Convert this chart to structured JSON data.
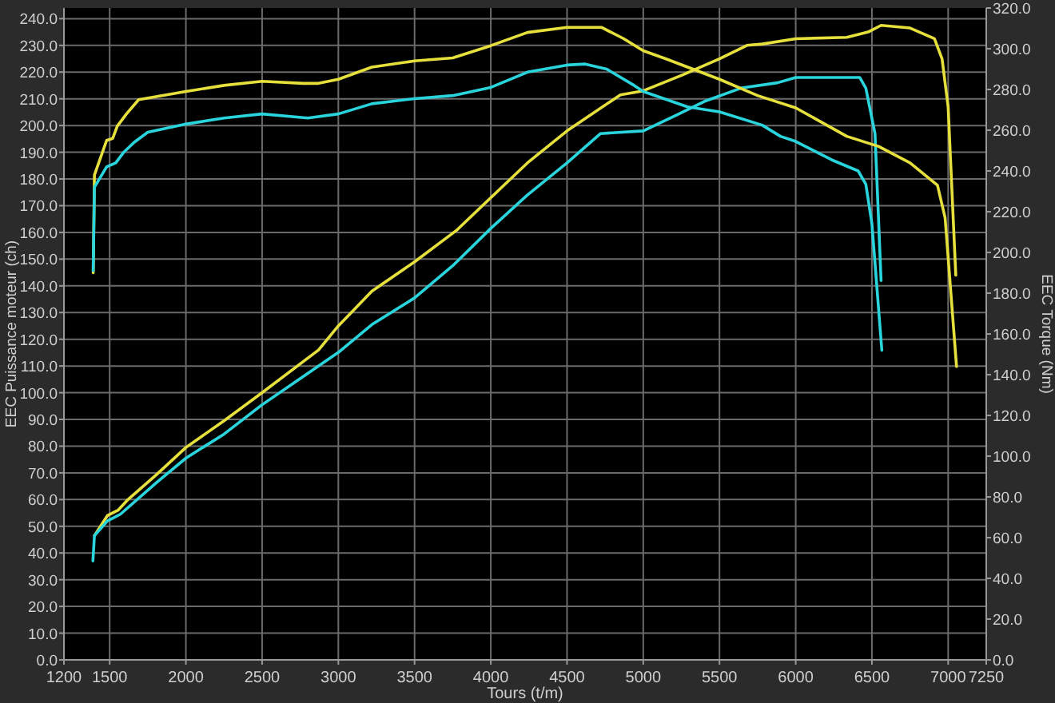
{
  "chart_data": {
    "type": "line",
    "xlabel": "Tours (t/m)",
    "ylabel": "EEC Puissance moteur (ch)",
    "y2label": "EEC Torque (Nm)",
    "grid": true,
    "marker": "none",
    "line_style": "solid",
    "xlim": [
      1200,
      7250
    ],
    "xticks": [
      1200,
      1500,
      2000,
      2500,
      3000,
      3500,
      4000,
      4500,
      5000,
      5500,
      6000,
      6500,
      7000,
      7250
    ],
    "ylim": [
      0,
      244
    ],
    "yticks": [
      {
        "value": 0,
        "label": "0.0"
      },
      {
        "value": 10,
        "label": "10.0"
      },
      {
        "value": 20,
        "label": "20.0"
      },
      {
        "value": 30,
        "label": "30.0"
      },
      {
        "value": 40,
        "label": "40.0"
      },
      {
        "value": 50,
        "label": "50.0"
      },
      {
        "value": 60,
        "label": "60.0"
      },
      {
        "value": 70,
        "label": "70.0"
      },
      {
        "value": 80,
        "label": "80.0"
      },
      {
        "value": 90,
        "label": "90.0"
      },
      {
        "value": 100,
        "label": "100.0"
      },
      {
        "value": 110,
        "label": "110.0"
      },
      {
        "value": 120,
        "label": "120.0"
      },
      {
        "value": 130,
        "label": "130.0"
      },
      {
        "value": 140,
        "label": "140.0"
      },
      {
        "value": 150,
        "label": "150.0"
      },
      {
        "value": 160,
        "label": "160.0"
      },
      {
        "value": 170,
        "label": "170.0"
      },
      {
        "value": 180,
        "label": "180.0"
      },
      {
        "value": 190,
        "label": "190.0"
      },
      {
        "value": 200,
        "label": "200.0"
      },
      {
        "value": 210,
        "label": "210.0"
      },
      {
        "value": 220,
        "label": "220.0"
      },
      {
        "value": 230,
        "label": "230.0"
      },
      {
        "value": 240,
        "label": "240.0"
      }
    ],
    "y2lim": [
      0,
      320
    ],
    "y2ticks": [
      {
        "value": 0,
        "label": "0.0"
      },
      {
        "value": 20,
        "label": "20.0"
      },
      {
        "value": 40,
        "label": "40.0"
      },
      {
        "value": 60,
        "label": "60.0"
      },
      {
        "value": 80,
        "label": "80.0"
      },
      {
        "value": 100,
        "label": "100.0"
      },
      {
        "value": 120,
        "label": "120.0"
      },
      {
        "value": 140,
        "label": "140.0"
      },
      {
        "value": 160,
        "label": "160.0"
      },
      {
        "value": 180,
        "label": "180.0"
      },
      {
        "value": 200,
        "label": "200.0"
      },
      {
        "value": 220,
        "label": "220.0"
      },
      {
        "value": 240,
        "label": "240.0"
      },
      {
        "value": 260,
        "label": "260.0"
      },
      {
        "value": 280,
        "label": "280.0"
      },
      {
        "value": 300,
        "label": "300.0"
      },
      {
        "value": 320,
        "label": "320.0"
      }
    ],
    "series": [
      {
        "color": "#e6e03c",
        "x": [
          1400,
          1485,
          1555,
          1620,
          1810,
          2000,
          2250,
          2500,
          2870,
          3000,
          3220,
          3500,
          3780,
          4000,
          4240,
          4500,
          4850,
          5000,
          5260,
          5500,
          5680,
          5780,
          6000,
          6335,
          6475,
          6560,
          6750,
          6910,
          6960,
          7000,
          7050
        ],
        "values": [
          46.5,
          54,
          56,
          60,
          69.5,
          79.5,
          89.5,
          100,
          116,
          125,
          138,
          149,
          161,
          173,
          186,
          198,
          211.5,
          213,
          219,
          225,
          230,
          230.5,
          232.5,
          233,
          235,
          237.5,
          236.5,
          232.5,
          225,
          207,
          144
        ]
      },
      {
        "color": "#2ad4dc",
        "x": [
          1390,
          1400,
          1485,
          1570,
          1810,
          2000,
          2250,
          2500,
          2730,
          3010,
          3220,
          3500,
          3750,
          4000,
          4240,
          4500,
          4720,
          5000,
          5220,
          5400,
          5640,
          5880,
          6000,
          6210,
          6420,
          6460,
          6520,
          6560
        ],
        "values": [
          37,
          46.5,
          52,
          54.5,
          66.5,
          75.5,
          84.5,
          95.5,
          104.5,
          115.5,
          125.5,
          135.5,
          147.5,
          161.5,
          174,
          186,
          197,
          198,
          204,
          209,
          214,
          216,
          218,
          218,
          218,
          214,
          197,
          142
        ]
      },
      {
        "color": "#e6e03c",
        "axis": "y2",
        "x": [
          1392,
          1400,
          1480,
          1520,
          1550,
          1610,
          1690,
          2000,
          2250,
          2500,
          2770,
          2870,
          3000,
          3220,
          3500,
          3750,
          4000,
          4240,
          4500,
          4725,
          4870,
          5000,
          5150,
          5500,
          5750,
          6000,
          6335,
          6545,
          6750,
          6930,
          6980,
          7055
        ],
        "values": [
          190,
          238,
          255,
          256,
          262,
          268,
          275,
          279,
          282,
          284,
          283,
          283,
          285,
          291,
          294,
          295.5,
          301.5,
          308,
          310.5,
          310.5,
          305,
          299,
          295,
          285,
          277,
          271,
          257,
          252,
          244,
          233,
          217,
          144
        ]
      },
      {
        "color": "#2ad4dc",
        "axis": "y2",
        "x": [
          1392,
          1400,
          1480,
          1540,
          1590,
          1660,
          1750,
          2000,
          2250,
          2500,
          2800,
          3000,
          3220,
          3500,
          3750,
          4000,
          4240,
          4500,
          4620,
          4760,
          4940,
          5000,
          5290,
          5500,
          5780,
          5900,
          6000,
          6235,
          6410,
          6460,
          6500,
          6565
        ],
        "values": [
          191,
          232,
          242,
          244,
          249,
          254,
          259,
          263,
          266,
          268,
          266,
          268,
          273,
          275.5,
          277,
          281,
          288.5,
          292,
          292.5,
          290,
          282,
          279,
          271.5,
          269,
          262.5,
          257,
          254.5,
          245.5,
          240,
          233.5,
          214,
          152
        ]
      }
    ]
  }
}
